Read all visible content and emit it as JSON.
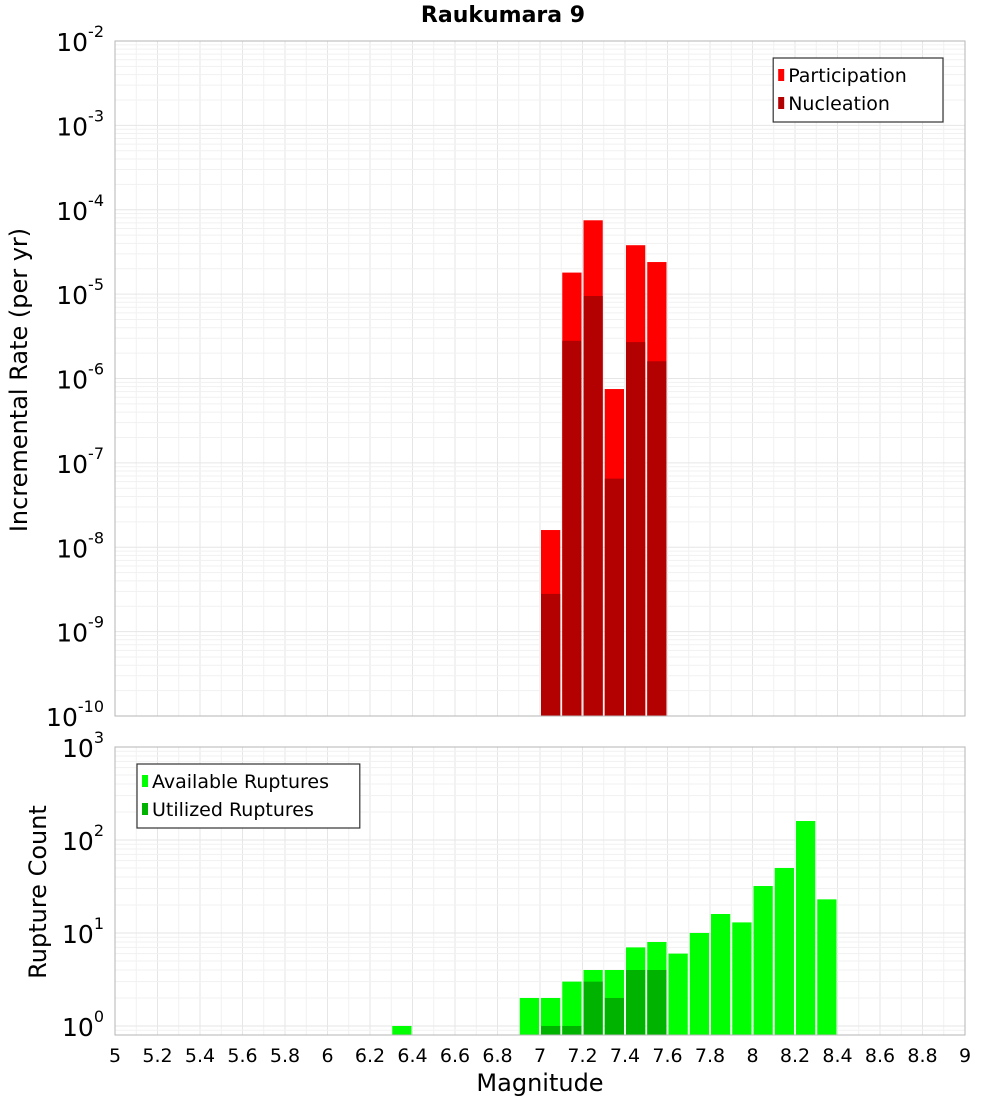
{
  "figure": {
    "title": "Raukumara 9",
    "xlabel": "Magnitude"
  },
  "chart_data": [
    {
      "type": "bar",
      "scale": "log",
      "ylabel": "Incremental Rate (per yr)",
      "xlim": [
        5,
        9
      ],
      "ylim": [
        1e-10,
        0.01
      ],
      "y_ticks": [
        {
          "base": "10",
          "exp": "-10",
          "value": 1e-10
        },
        {
          "base": "10",
          "exp": "-9",
          "value": 1e-09
        },
        {
          "base": "10",
          "exp": "-8",
          "value": 1e-08
        },
        {
          "base": "10",
          "exp": "-7",
          "value": 1e-07
        },
        {
          "base": "10",
          "exp": "-6",
          "value": 1e-06
        },
        {
          "base": "10",
          "exp": "-5",
          "value": 1e-05
        },
        {
          "base": "10",
          "exp": "-4",
          "value": 0.0001
        },
        {
          "base": "10",
          "exp": "-3",
          "value": 0.001
        },
        {
          "base": "10",
          "exp": "-2",
          "value": 0.01
        }
      ],
      "grid": true,
      "legend_position": "top-right",
      "bin_width": 0.1,
      "series": [
        {
          "name": "Participation",
          "color": "#ff0000",
          "points": [
            {
              "x": 7.05,
              "y": 1.6e-08
            },
            {
              "x": 7.15,
              "y": 1.8e-05
            },
            {
              "x": 7.25,
              "y": 7.5e-05
            },
            {
              "x": 7.35,
              "y": 7.5e-07
            },
            {
              "x": 7.45,
              "y": 3.8e-05
            },
            {
              "x": 7.55,
              "y": 2.4e-05
            }
          ]
        },
        {
          "name": "Nucleation",
          "color": "#b30000",
          "points": [
            {
              "x": 7.05,
              "y": 2.8e-09
            },
            {
              "x": 7.15,
              "y": 2.8e-06
            },
            {
              "x": 7.25,
              "y": 9.5e-06
            },
            {
              "x": 7.35,
              "y": 6.5e-08
            },
            {
              "x": 7.45,
              "y": 2.7e-06
            },
            {
              "x": 7.55,
              "y": 1.6e-06
            }
          ]
        }
      ]
    },
    {
      "type": "bar",
      "scale": "log",
      "ylabel": "Rupture Count",
      "xlim": [
        5,
        9
      ],
      "ylim": [
        0.8,
        1000
      ],
      "y_ticks": [
        {
          "base": "10",
          "exp": "0",
          "value": 1
        },
        {
          "base": "10",
          "exp": "1",
          "value": 10
        },
        {
          "base": "10",
          "exp": "2",
          "value": 100
        },
        {
          "base": "10",
          "exp": "3",
          "value": 1000
        }
      ],
      "x_ticks": [
        "5",
        "5.2",
        "5.4",
        "5.6",
        "5.8",
        "6",
        "6.2",
        "6.4",
        "6.6",
        "6.8",
        "7",
        "7.2",
        "7.4",
        "7.6",
        "7.8",
        "8",
        "8.2",
        "8.4",
        "8.6",
        "8.8",
        "9"
      ],
      "grid": true,
      "legend_position": "top-left",
      "bin_width": 0.1,
      "series": [
        {
          "name": "Available Ruptures",
          "color": "#00ff00",
          "points": [
            {
              "x": 6.35,
              "y": 1
            },
            {
              "x": 6.95,
              "y": 2
            },
            {
              "x": 7.05,
              "y": 2
            },
            {
              "x": 7.15,
              "y": 3
            },
            {
              "x": 7.25,
              "y": 4
            },
            {
              "x": 7.35,
              "y": 4
            },
            {
              "x": 7.45,
              "y": 7
            },
            {
              "x": 7.55,
              "y": 8
            },
            {
              "x": 7.65,
              "y": 6
            },
            {
              "x": 7.75,
              "y": 10
            },
            {
              "x": 7.85,
              "y": 16
            },
            {
              "x": 7.95,
              "y": 13
            },
            {
              "x": 8.05,
              "y": 32
            },
            {
              "x": 8.15,
              "y": 50
            },
            {
              "x": 8.25,
              "y": 160
            },
            {
              "x": 8.35,
              "y": 23
            }
          ]
        },
        {
          "name": "Utilized Ruptures",
          "color": "#00b300",
          "points": [
            {
              "x": 7.05,
              "y": 1
            },
            {
              "x": 7.15,
              "y": 1
            },
            {
              "x": 7.25,
              "y": 3
            },
            {
              "x": 7.35,
              "y": 2
            },
            {
              "x": 7.45,
              "y": 4
            },
            {
              "x": 7.55,
              "y": 4
            }
          ]
        }
      ]
    }
  ]
}
